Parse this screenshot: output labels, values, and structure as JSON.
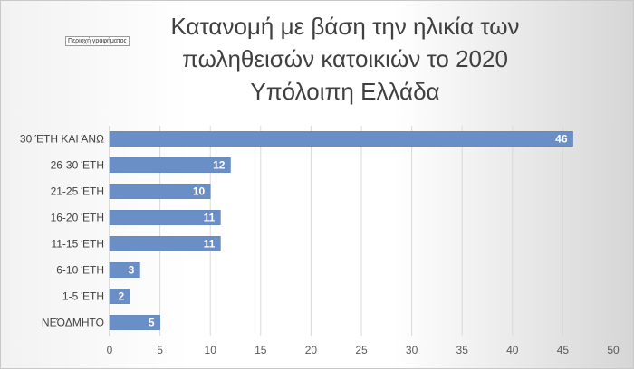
{
  "tooltip": "Περιοχή γραφήματος",
  "chart_data": {
    "type": "bar",
    "orientation": "horizontal",
    "title": [
      "Κατανομή με βάση την ηλικία των",
      "πωληθεισών κατοικιών το 2020",
      "Υπόλοιπη Ελλάδα"
    ],
    "categories": [
      "30 ΈΤΗ ΚΑΙ ΆΝΩ",
      "26-30 ΈΤΗ",
      "21-25 ΈΤΗ",
      "16-20 ΈΤΗ",
      "11-15 ΈΤΗ",
      "6-10 ΈΤΗ",
      "1-5 ΈΤΗ",
      "ΝΕΌΔΜΗΤΟ"
    ],
    "values": [
      46,
      12,
      10,
      11,
      11,
      3,
      2,
      5
    ],
    "xlim": [
      0,
      50
    ],
    "xticks": [
      0,
      5,
      10,
      15,
      20,
      25,
      30,
      35,
      40,
      45,
      50
    ],
    "grid": true,
    "bar_color": "#6a8fc6",
    "bar_edge_color": "#5a7fb6",
    "label_color": "#ffffff"
  }
}
